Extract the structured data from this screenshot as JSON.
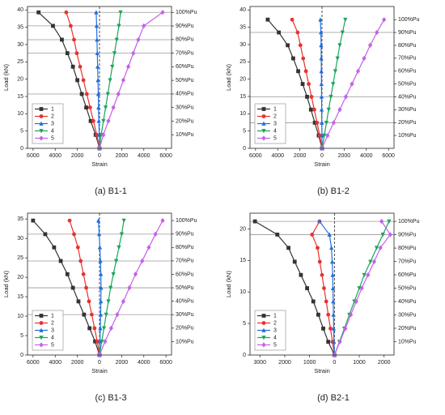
{
  "chart_data": [
    {
      "type": "line",
      "title": "(a) B1-1",
      "xlabel": "Strain",
      "ylabel": "Load (kN)",
      "legend": "lower left",
      "xlim": [
        -6500,
        6500
      ],
      "ylim": [
        0,
        41
      ],
      "y2lim": [
        0,
        41
      ],
      "xticks": [
        {
          "value": -6000,
          "label": "6000"
        },
        {
          "value": -4000,
          "label": "4000"
        },
        {
          "value": -2000,
          "label": "2000"
        },
        0,
        2000,
        4000,
        6000
      ],
      "yticks": [
        0,
        5,
        10,
        15,
        20,
        25,
        30,
        35,
        40
      ],
      "y2ticks": [
        {
          "value": 3.93,
          "label": "10%Pu"
        },
        {
          "value": 7.86,
          "label": "20%Pu"
        },
        {
          "value": 11.79,
          "label": "30%Pu"
        },
        {
          "value": 15.72,
          "label": "40%Pu"
        },
        {
          "value": 19.65,
          "label": "50%Pu"
        },
        {
          "value": 23.58,
          "label": "60%Pu"
        },
        {
          "value": 27.51,
          "label": "70%Pu"
        },
        {
          "value": 31.44,
          "label": "80%Pu"
        },
        {
          "value": 35.37,
          "label": "90%Pu"
        },
        {
          "value": 39.3,
          "label": "100%Pu"
        }
      ],
      "hlines": [
        39.3,
        35.4,
        31.4,
        27.5,
        15.7
      ],
      "series": [
        {
          "name": "1",
          "color": "#333333",
          "marker": "square",
          "x": [
            0,
            -350,
            -800,
            -1200,
            -1600,
            -2000,
            -2400,
            -2900,
            -3400,
            -4200,
            -5500
          ],
          "values": [
            0,
            3.9,
            7.9,
            11.8,
            15.7,
            19.7,
            23.6,
            27.5,
            31.4,
            35.4,
            39.3
          ]
        },
        {
          "name": "2",
          "color": "#e8322f",
          "marker": "circle",
          "x": [
            0,
            -250,
            -550,
            -850,
            -1150,
            -1450,
            -1750,
            -2050,
            -2300,
            -2600,
            -3000
          ],
          "values": [
            0,
            3.9,
            7.9,
            11.8,
            15.7,
            19.7,
            23.6,
            27.5,
            31.4,
            35.4,
            39.3
          ]
        },
        {
          "name": "3",
          "color": "#1f6fe0",
          "marker": "triangle-up",
          "x": [
            0,
            -30,
            -60,
            -90,
            -110,
            -140,
            -170,
            -200,
            -230,
            -260,
            -300
          ],
          "values": [
            0,
            3.9,
            7.9,
            11.8,
            15.7,
            19.7,
            23.6,
            27.5,
            31.4,
            35.4,
            39.3
          ]
        },
        {
          "name": "4",
          "color": "#1aa65a",
          "marker": "triangle-down",
          "x": [
            0,
            150,
            350,
            550,
            750,
            950,
            1150,
            1350,
            1550,
            1750,
            1900
          ],
          "values": [
            0,
            3.9,
            7.9,
            11.8,
            15.7,
            19.7,
            23.6,
            27.5,
            31.4,
            35.4,
            39.3
          ]
        },
        {
          "name": "5",
          "color": "#c561e8",
          "marker": "diamond",
          "x": [
            0,
            350,
            800,
            1250,
            1700,
            2150,
            2600,
            3050,
            3500,
            4000,
            5700
          ],
          "values": [
            0,
            3.9,
            7.9,
            11.8,
            15.7,
            19.7,
            23.6,
            27.5,
            31.4,
            35.4,
            39.3
          ]
        }
      ]
    },
    {
      "type": "line",
      "title": "(b) B1-2",
      "xlabel": "Strain",
      "ylabel": "Load (kN)",
      "legend": "lower left",
      "xlim": [
        -6500,
        6500
      ],
      "ylim": [
        0,
        41
      ],
      "y2lim": [
        0,
        41
      ],
      "xticks": [
        {
          "value": -6000,
          "label": "6000"
        },
        {
          "value": -4000,
          "label": "4000"
        },
        {
          "value": -2000,
          "label": "2000"
        },
        0,
        2000,
        4000,
        6000
      ],
      "yticks": [
        0,
        5,
        10,
        15,
        20,
        25,
        30,
        35,
        40
      ],
      "y2ticks": [
        {
          "value": 3.72,
          "label": "10%Pu"
        },
        {
          "value": 7.44,
          "label": "20%Pu"
        },
        {
          "value": 11.16,
          "label": "30%Pu"
        },
        {
          "value": 14.88,
          "label": "40%Pu"
        },
        {
          "value": 18.6,
          "label": "50%Pu"
        },
        {
          "value": 22.32,
          "label": "60%Pu"
        },
        {
          "value": 26.04,
          "label": "70%Pu"
        },
        {
          "value": 29.76,
          "label": "80%Pu"
        },
        {
          "value": 33.48,
          "label": "90%Pu"
        },
        {
          "value": 37.2,
          "label": "100%Pu"
        }
      ],
      "hlines": [
        33.5,
        14.9,
        7.4
      ],
      "series": [
        {
          "name": "1",
          "color": "#333333",
          "marker": "square",
          "x": [
            0,
            -300,
            -650,
            -1000,
            -1350,
            -1750,
            -2150,
            -2600,
            -3100,
            -3900,
            -4900
          ],
          "values": [
            0,
            3.7,
            7.4,
            11.2,
            14.9,
            18.6,
            22.3,
            26.0,
            29.8,
            33.5,
            37.2
          ]
        },
        {
          "name": "2",
          "color": "#e8322f",
          "marker": "circle",
          "x": [
            0,
            -200,
            -450,
            -700,
            -950,
            -1200,
            -1450,
            -1700,
            -1950,
            -2200,
            -2700
          ],
          "values": [
            0,
            3.7,
            7.4,
            11.2,
            14.9,
            18.6,
            22.3,
            26.0,
            29.8,
            33.5,
            37.2
          ]
        },
        {
          "name": "3",
          "color": "#1f6fe0",
          "marker": "triangle-up",
          "x": [
            0,
            -10,
            -20,
            -30,
            -40,
            -50,
            -60,
            -70,
            -80,
            -100,
            -150
          ],
          "values": [
            0,
            3.7,
            7.4,
            11.2,
            14.9,
            18.6,
            22.3,
            26.0,
            29.8,
            33.5,
            37.2
          ]
        },
        {
          "name": "4",
          "color": "#1aa65a",
          "marker": "triangle-down",
          "x": [
            0,
            200,
            400,
            600,
            800,
            1000,
            1200,
            1400,
            1600,
            1850,
            2100
          ],
          "values": [
            0,
            3.7,
            7.4,
            11.2,
            14.9,
            18.6,
            22.3,
            26.0,
            29.8,
            33.5,
            37.2
          ]
        },
        {
          "name": "5",
          "color": "#c561e8",
          "marker": "diamond",
          "x": [
            0,
            500,
            1050,
            1600,
            2150,
            2700,
            3250,
            3800,
            4350,
            4950,
            5600
          ],
          "values": [
            0,
            3.7,
            7.4,
            11.2,
            14.9,
            18.6,
            22.3,
            26.0,
            29.8,
            33.5,
            37.2
          ]
        }
      ]
    },
    {
      "type": "line",
      "title": "(c) B1-3",
      "xlabel": "Strain",
      "ylabel": "Load (kN)",
      "legend": "lower left",
      "xlim": [
        -6500,
        6500
      ],
      "ylim": [
        0,
        36.5
      ],
      "y2lim": [
        0,
        36.5
      ],
      "xticks": [
        {
          "value": -6000,
          "label": "6000"
        },
        {
          "value": -4000,
          "label": "4000"
        },
        {
          "value": -2000,
          "label": "2000"
        },
        0,
        2000,
        4000,
        6000
      ],
      "yticks": [
        0,
        5,
        10,
        15,
        20,
        25,
        30,
        35
      ],
      "y2ticks": [
        {
          "value": 3.46,
          "label": "10%Pu"
        },
        {
          "value": 6.92,
          "label": "20%Pu"
        },
        {
          "value": 10.38,
          "label": "30%Pu"
        },
        {
          "value": 13.84,
          "label": "40%Pu"
        },
        {
          "value": 17.3,
          "label": "50%Pu"
        },
        {
          "value": 20.76,
          "label": "60%Pu"
        },
        {
          "value": 24.22,
          "label": "70%Pu"
        },
        {
          "value": 27.68,
          "label": "80%Pu"
        },
        {
          "value": 31.14,
          "label": "90%Pu"
        },
        {
          "value": 34.6,
          "label": "100%Pu"
        }
      ],
      "hlines": [
        31.1,
        24.2,
        17.3,
        10.4
      ],
      "series": [
        {
          "name": "1",
          "color": "#333333",
          "marker": "square",
          "x": [
            0,
            -400,
            -900,
            -1400,
            -1900,
            -2400,
            -2900,
            -3500,
            -4100,
            -4900,
            -6000
          ],
          "values": [
            0,
            3.5,
            6.9,
            10.4,
            13.8,
            17.3,
            20.8,
            24.2,
            27.7,
            31.1,
            34.6
          ]
        },
        {
          "name": "2",
          "color": "#e8322f",
          "marker": "circle",
          "x": [
            0,
            -200,
            -450,
            -700,
            -950,
            -1200,
            -1450,
            -1700,
            -1950,
            -2300,
            -2700
          ],
          "values": [
            0,
            3.5,
            6.9,
            10.4,
            13.8,
            17.3,
            20.8,
            24.2,
            27.7,
            31.1,
            34.6
          ]
        },
        {
          "name": "3",
          "color": "#1f6fe0",
          "marker": "triangle-up",
          "x": [
            0,
            40,
            70,
            100,
            120,
            140,
            120,
            80,
            30,
            -30,
            -100
          ],
          "values": [
            0,
            3.5,
            6.9,
            10.4,
            13.8,
            17.3,
            20.8,
            24.2,
            27.7,
            31.1,
            34.6
          ]
        },
        {
          "name": "4",
          "color": "#1aa65a",
          "marker": "triangle-down",
          "x": [
            0,
            200,
            400,
            600,
            800,
            1000,
            1250,
            1500,
            1750,
            2000,
            2200
          ],
          "values": [
            0,
            3.5,
            6.9,
            10.4,
            13.8,
            17.3,
            20.8,
            24.2,
            27.7,
            31.1,
            34.6
          ]
        },
        {
          "name": "5",
          "color": "#c561e8",
          "marker": "diamond",
          "x": [
            0,
            500,
            1050,
            1600,
            2150,
            2700,
            3250,
            3850,
            4450,
            5050,
            5700
          ],
          "values": [
            0,
            3.5,
            6.9,
            10.4,
            13.8,
            17.3,
            20.8,
            24.2,
            27.7,
            31.1,
            34.6
          ]
        }
      ]
    },
    {
      "type": "line",
      "title": "(d) B2-1",
      "xlabel": "Strain",
      "ylabel": "Load (kN)",
      "legend": "lower left",
      "xlim": [
        -3400,
        2400
      ],
      "ylim": [
        0,
        22.5
      ],
      "y2lim": [
        0,
        22.5
      ],
      "xticks": [
        {
          "value": -3000,
          "label": "3000"
        },
        {
          "value": -2000,
          "label": "2000"
        },
        {
          "value": -1000,
          "label": "1000"
        },
        0,
        1000,
        2000
      ],
      "yticks": [
        0,
        5,
        10,
        15,
        20
      ],
      "y2ticks": [
        {
          "value": 2.12,
          "label": "10%Pu"
        },
        {
          "value": 4.24,
          "label": "20%Pu"
        },
        {
          "value": 6.36,
          "label": "30%Pu"
        },
        {
          "value": 8.48,
          "label": "40%Pu"
        },
        {
          "value": 10.6,
          "label": "50%Pu"
        },
        {
          "value": 12.72,
          "label": "60%Pu"
        },
        {
          "value": 14.84,
          "label": "70%Pu"
        },
        {
          "value": 16.96,
          "label": "80%Pu"
        },
        {
          "value": 19.08,
          "label": "90%Pu"
        },
        {
          "value": 21.2,
          "label": "100%Pu"
        }
      ],
      "hlines": [
        21.2,
        19.1
      ],
      "series": [
        {
          "name": "1",
          "color": "#333333",
          "marker": "square",
          "x": [
            0,
            -250,
            -450,
            -650,
            -850,
            -1100,
            -1350,
            -1600,
            -1850,
            -2300,
            -3200
          ],
          "values": [
            0,
            2.1,
            4.2,
            6.4,
            8.5,
            10.6,
            12.7,
            14.8,
            17.0,
            19.1,
            21.2
          ]
        },
        {
          "name": "2",
          "color": "#e8322f",
          "marker": "circle",
          "x": [
            0,
            -80,
            -160,
            -250,
            -330,
            -420,
            -500,
            -590,
            -680,
            -900,
            -600
          ],
          "values": [
            0,
            2.1,
            4.2,
            6.4,
            8.5,
            10.6,
            12.7,
            14.8,
            17.0,
            19.1,
            21.2
          ]
        },
        {
          "name": "3",
          "color": "#1f6fe0",
          "marker": "triangle-up",
          "x": [
            0,
            -20,
            -30,
            -40,
            -50,
            -60,
            -70,
            -90,
            -120,
            -200,
            -600
          ],
          "values": [
            0,
            2.1,
            4.2,
            6.4,
            8.5,
            10.6,
            12.7,
            14.8,
            17.0,
            19.1,
            21.2
          ]
        },
        {
          "name": "4",
          "color": "#1aa65a",
          "marker": "triangle-down",
          "x": [
            0,
            200,
            400,
            600,
            800,
            1000,
            1200,
            1450,
            1700,
            1950,
            2200
          ],
          "values": [
            0,
            2.1,
            4.2,
            6.4,
            8.5,
            10.6,
            12.7,
            14.8,
            17.0,
            19.1,
            21.2
          ]
        },
        {
          "name": "5",
          "color": "#c561e8",
          "marker": "diamond",
          "x": [
            0,
            220,
            440,
            660,
            880,
            1100,
            1350,
            1600,
            1850,
            2250,
            1900
          ],
          "values": [
            0,
            2.1,
            4.2,
            6.4,
            8.5,
            10.6,
            12.7,
            14.8,
            17.0,
            19.1,
            21.2
          ]
        }
      ]
    }
  ]
}
